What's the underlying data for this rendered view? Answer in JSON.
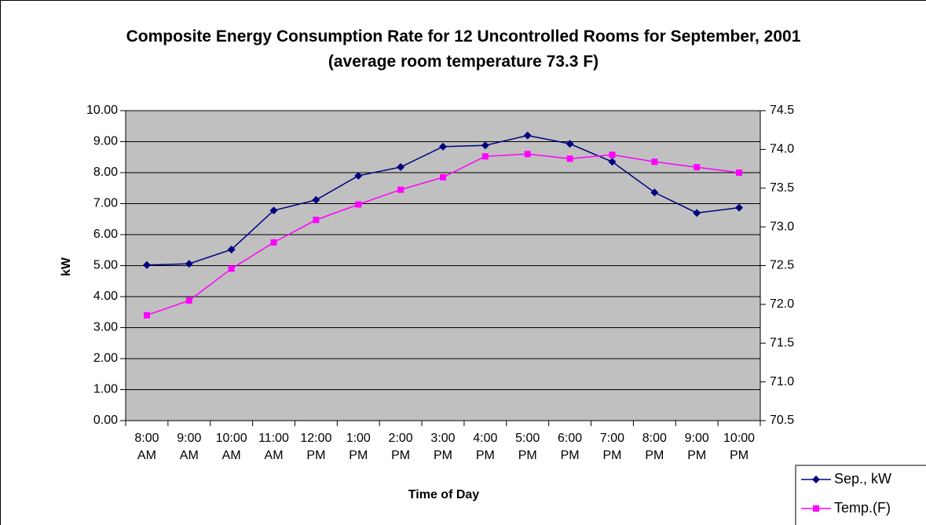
{
  "chart_data": {
    "type": "line",
    "title": "Composite Energy Consumption Rate for 12 Uncontrolled Rooms for September, 2001 (average room temperature 73.3 F)",
    "x_label": "Time of Day",
    "y_label": "kW",
    "categories": [
      "8:00 AM",
      "9:00 AM",
      "10:00 AM",
      "11:00 AM",
      "12:00 PM",
      "1:00 PM",
      "2:00 PM",
      "3:00 PM",
      "4:00 PM",
      "5:00 PM",
      "6:00 PM",
      "7:00 PM",
      "8:00 PM",
      "9:00 PM",
      "10:00 PM"
    ],
    "series": [
      {
        "name": "Sep., kW",
        "color": "#000080",
        "marker": "diamond",
        "values": [
          5.02,
          5.06,
          5.52,
          6.78,
          7.12,
          7.9,
          8.18,
          8.84,
          8.88,
          9.2,
          8.93,
          8.35,
          7.36,
          6.7,
          6.87
        ]
      },
      {
        "name": "Temp.(F)",
        "color": "#ff00ff",
        "marker": "square",
        "axis": "y2",
        "values": [
          71.86,
          72.05,
          72.46,
          72.8,
          73.09,
          73.29,
          73.48,
          73.64,
          73.91,
          73.94,
          73.88,
          73.93,
          73.84,
          73.77,
          73.7
        ]
      }
    ],
    "ylim": [
      0,
      10
    ],
    "yticks": [
      {
        "value": 0,
        "label": "0.00"
      },
      {
        "value": 1,
        "label": "1.00"
      },
      {
        "value": 2,
        "label": "2.00"
      },
      {
        "value": 3,
        "label": "3.00"
      },
      {
        "value": 4,
        "label": "4.00"
      },
      {
        "value": 5,
        "label": "5.00"
      },
      {
        "value": 6,
        "label": "6.00"
      },
      {
        "value": 7,
        "label": "7.00"
      },
      {
        "value": 8,
        "label": "8.00"
      },
      {
        "value": 9,
        "label": "9.00"
      },
      {
        "value": 10,
        "label": "10.00"
      }
    ],
    "y2lim": [
      70.5,
      74.5
    ],
    "y2ticks": [
      70.5,
      {
        "value": 71,
        "label": "71.0"
      },
      71.5,
      {
        "value": 72,
        "label": "72.0"
      },
      72.5,
      {
        "value": 73,
        "label": "73.0"
      },
      73.5,
      {
        "value": 74,
        "label": "74.0"
      },
      74.5
    ],
    "grid": true,
    "legend": "bottom-right",
    "plot_background": "#c0c0c0"
  }
}
